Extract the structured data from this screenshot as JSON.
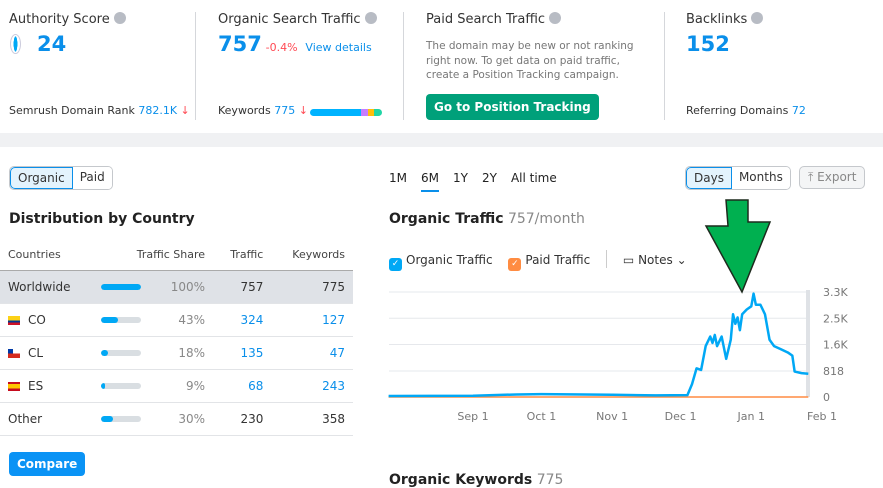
{
  "cards": {
    "authority": {
      "title": "Authority Score",
      "value": "24",
      "rank_label": "Semrush Domain Rank",
      "rank_value": "782.1K",
      "rank_trend": "↓"
    },
    "organic": {
      "title": "Organic Search Traffic",
      "value": "757",
      "change": "-0.4%",
      "link": "View details",
      "kw_label": "Keywords",
      "kw_value": "775",
      "kw_trend": "↓",
      "kw_bar_colors": [
        "#00b3ff",
        "#c77dff",
        "#ffbe0b",
        "#20d5a6"
      ]
    },
    "paid": {
      "title": "Paid Search Traffic",
      "text": "The domain may be new or not ranking right now. To get data on paid traffic, create a Position Tracking campaign.",
      "button": "Go to Position Tracking"
    },
    "backlinks": {
      "title": "Backlinks",
      "value": "152",
      "ref_label": "Referring Domains",
      "ref_value": "72"
    }
  },
  "left": {
    "tabs": [
      "Organic",
      "Paid"
    ],
    "title": "Distribution by Country",
    "headers": [
      "Countries",
      "Traffic Share",
      "Traffic",
      "Keywords"
    ],
    "rows": [
      {
        "country": "Worldwide",
        "share": 100,
        "share_label": "100%",
        "traffic": "757",
        "keywords": "775"
      },
      {
        "country": "CO",
        "share": 43,
        "share_label": "43%",
        "traffic": "324",
        "keywords": "127"
      },
      {
        "country": "CL",
        "share": 18,
        "share_label": "18%",
        "traffic": "135",
        "keywords": "47"
      },
      {
        "country": "ES",
        "share": 9,
        "share_label": "9%",
        "traffic": "68",
        "keywords": "243"
      },
      {
        "country": "Other",
        "share": 30,
        "share_label": "30%",
        "traffic": "230",
        "keywords": "358"
      }
    ],
    "compare": "Compare"
  },
  "right": {
    "ranges": [
      "1M",
      "6M",
      "1Y",
      "2Y",
      "All time"
    ],
    "granularity": [
      "Days",
      "Months"
    ],
    "export": "Export",
    "title": "Organic Traffic",
    "subtitle": "757/month",
    "legend": [
      "Organic Traffic",
      "Paid Traffic"
    ],
    "notes": "Notes",
    "bottom_title": "Organic Keywords",
    "bottom_value": "775"
  },
  "colors": {
    "accent": "#0a8fea",
    "organic": "#00a8f5",
    "paid": "#ff8c42",
    "arrow": "#00b050"
  },
  "chart_data": {
    "type": "line",
    "ylim": [
      0,
      3300
    ],
    "yticks": [
      "0",
      "818",
      "1.6K",
      "2.5K",
      "3.3K"
    ],
    "ytick_values": [
      0,
      818,
      1650,
      2475,
      3300
    ],
    "xticks": [
      "Sep 1",
      "Oct 1",
      "Nov 1",
      "Dec 1",
      "Jan 1",
      "Feb 1"
    ],
    "series": [
      {
        "name": "Organic Traffic",
        "points": [
          [
            "Jul 26",
            30
          ],
          [
            "Sep 1",
            40
          ],
          [
            "Sep 20",
            80
          ],
          [
            "Oct 1",
            90
          ],
          [
            "Oct 20",
            80
          ],
          [
            "Nov 1",
            70
          ],
          [
            "Nov 20",
            50
          ],
          [
            "Dec 4",
            60
          ],
          [
            "Dec 6",
            400
          ],
          [
            "Dec 8",
            900
          ],
          [
            "Dec 10",
            850
          ],
          [
            "Dec 12",
            1600
          ],
          [
            "Dec 14",
            1900
          ],
          [
            "Dec 15",
            1700
          ],
          [
            "Dec 16",
            1950
          ],
          [
            "Dec 17",
            1600
          ],
          [
            "Dec 19",
            1900
          ],
          [
            "Dec 21",
            1200
          ],
          [
            "Dec 23",
            1800
          ],
          [
            "Dec 24",
            2600
          ],
          [
            "Dec 25",
            2300
          ],
          [
            "Dec 26",
            2500
          ],
          [
            "Dec 27",
            2100
          ],
          [
            "Dec 28",
            2600
          ],
          [
            "Dec 30",
            2750
          ],
          [
            "Jan 1",
            2850
          ],
          [
            "Jan 2",
            3250
          ],
          [
            "Jan 3",
            2900
          ],
          [
            "Jan 5",
            2900
          ],
          [
            "Jan 7",
            2600
          ],
          [
            "Jan 9",
            1800
          ],
          [
            "Jan 11",
            1600
          ],
          [
            "Jan 14",
            1500
          ],
          [
            "Jan 17",
            1400
          ],
          [
            "Jan 19",
            1300
          ],
          [
            "Jan 20",
            800
          ],
          [
            "Jan 23",
            750
          ],
          [
            "Jan 26",
            730
          ]
        ]
      },
      {
        "name": "Paid Traffic",
        "points": [
          [
            "Jul 26",
            0
          ],
          [
            "Jan 26",
            0
          ]
        ]
      }
    ]
  }
}
